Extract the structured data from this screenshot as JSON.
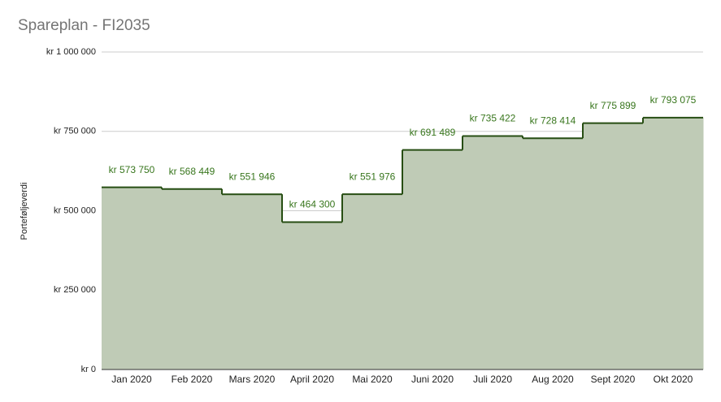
{
  "chart_data": {
    "type": "stepped-area",
    "title": "Spareplan - FI2035",
    "y_label": "Porteføljeverdi",
    "categories": [
      "Jan 2020",
      "Feb 2020",
      "Mars 2020",
      "April 2020",
      "Mai 2020",
      "Juni 2020",
      "Juli 2020",
      "Aug 2020",
      "Sept 2020",
      "Okt 2020"
    ],
    "values": [
      573750,
      568449,
      551946,
      464300,
      551976,
      691489,
      735422,
      728414,
      775899,
      793075
    ],
    "value_labels": [
      "kr 573 750",
      "kr 568 449",
      "kr 551 946",
      "kr 464 300",
      "kr 551 976",
      "kr 691 489",
      "kr 735 422",
      "kr 728 414",
      "kr 775 899",
      "kr 793 075"
    ],
    "color": "#274e13",
    "fill": "#bfcbb6",
    "ylim": [
      0,
      1000000
    ],
    "yticks": [
      {
        "value": 0,
        "label": "kr 0"
      },
      {
        "value": 250000,
        "label": "kr 250 000"
      },
      {
        "value": 500000,
        "label": "kr 500 000"
      },
      {
        "value": 750000,
        "label": "kr 750 000"
      },
      {
        "value": 1000000,
        "label": "kr 1 000 000"
      }
    ],
    "grid": true
  }
}
